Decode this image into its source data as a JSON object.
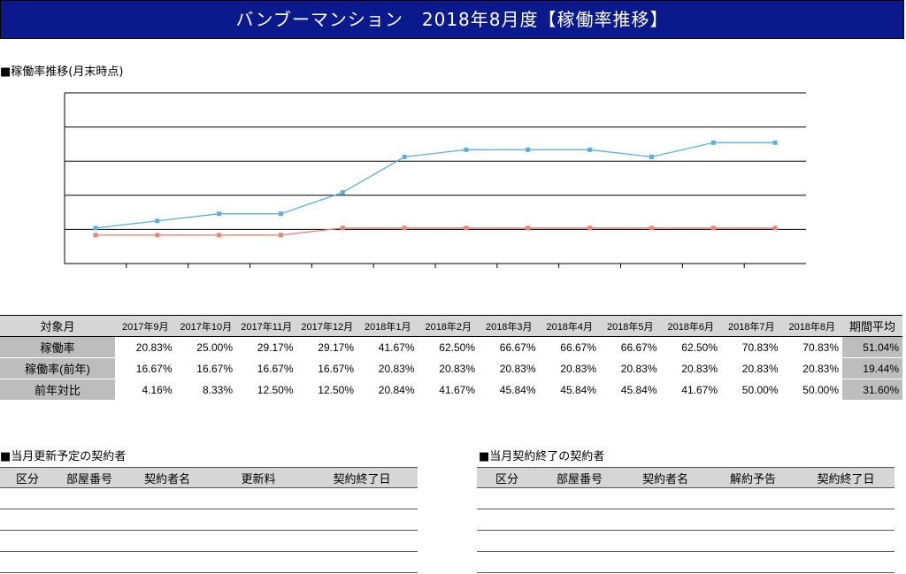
{
  "header": {
    "title": "バンブーマンション　2018年8月度【稼働率推移】"
  },
  "chart_section": {
    "title": "■稼働率推移(月末時点)"
  },
  "chart_data": {
    "type": "line",
    "categories": [
      "2017年9月",
      "2017年10月",
      "2017年11月",
      "2017年12月",
      "2018年1月",
      "2018年2月",
      "2018年3月",
      "2018年4月",
      "2018年5月",
      "2018年6月",
      "2018年7月",
      "2018年8月"
    ],
    "series": [
      {
        "name": "稼働率",
        "color": "#5aaee0",
        "values": [
          20.83,
          25.0,
          29.17,
          29.17,
          41.67,
          62.5,
          66.67,
          66.67,
          66.67,
          62.5,
          70.83,
          70.83
        ]
      },
      {
        "name": "稼働率(前年)",
        "color": "#f08070",
        "values": [
          16.67,
          16.67,
          16.67,
          16.67,
          20.83,
          20.83,
          20.83,
          20.83,
          20.83,
          20.83,
          20.83,
          20.83
        ]
      }
    ],
    "ylim": [
      0,
      100
    ],
    "grid": true
  },
  "table": {
    "header_label": "対象月",
    "months": [
      "2017年9月",
      "2017年10月",
      "2017年11月",
      "2017年12月",
      "2018年1月",
      "2018年2月",
      "2018年3月",
      "2018年4月",
      "2018年5月",
      "2018年6月",
      "2018年7月",
      "2018年8月"
    ],
    "avg_label": "期間平均",
    "rows": [
      {
        "label": "稼働率",
        "values": [
          "20.83%",
          "25.00%",
          "29.17%",
          "29.17%",
          "41.67%",
          "62.50%",
          "66.67%",
          "66.67%",
          "66.67%",
          "62.50%",
          "70.83%",
          "70.83%"
        ],
        "avg": "51.04%"
      },
      {
        "label": "稼働率(前年)",
        "values": [
          "16.67%",
          "16.67%",
          "16.67%",
          "16.67%",
          "20.83%",
          "20.83%",
          "20.83%",
          "20.83%",
          "20.83%",
          "20.83%",
          "20.83%",
          "20.83%"
        ],
        "avg": "19.44%"
      },
      {
        "label": "前年対比",
        "values": [
          "4.16%",
          "8.33%",
          "12.50%",
          "12.50%",
          "20.84%",
          "41.67%",
          "45.84%",
          "45.84%",
          "45.84%",
          "41.67%",
          "50.00%",
          "50.00%"
        ],
        "avg": "31.60%"
      }
    ]
  },
  "renewal": {
    "title": "■当月更新予定の契約者",
    "columns": [
      "区分",
      "部屋番号",
      "契約者名",
      "更新料",
      "契約終了日"
    ]
  },
  "termination": {
    "title": "■当月契約終了の契約者",
    "columns": [
      "区分",
      "部屋番号",
      "契約者名",
      "解約予告",
      "契約終了日"
    ]
  }
}
